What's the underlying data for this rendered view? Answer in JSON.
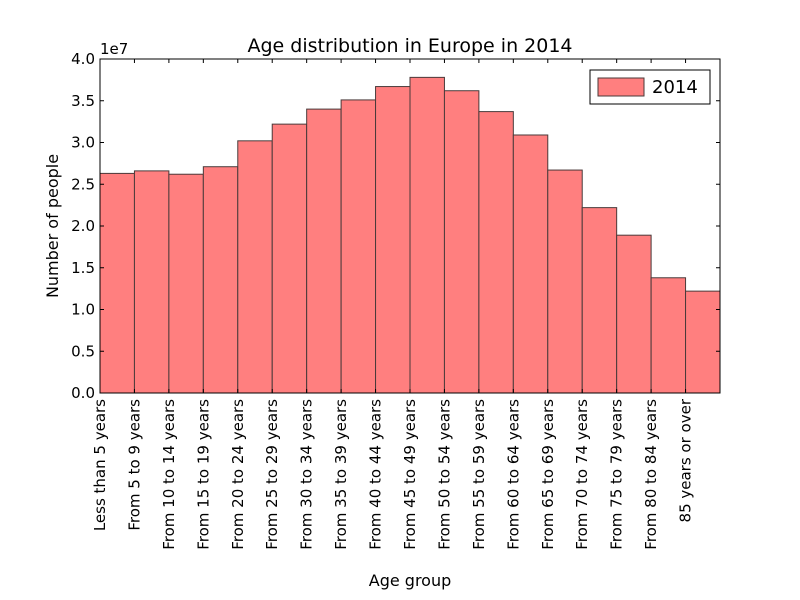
{
  "chart_data": {
    "type": "bar",
    "title": "Age distribution in Europe in 2014",
    "xlabel": "Age group",
    "ylabel": "Number of people",
    "y_multiplier_label": "1e7",
    "ylim": [
      0,
      40000000
    ],
    "y_ticks": [
      0,
      5000000,
      10000000,
      15000000,
      20000000,
      25000000,
      30000000,
      35000000,
      40000000
    ],
    "y_tick_labels": [
      "0.0",
      "0.5",
      "1.0",
      "1.5",
      "2.0",
      "2.5",
      "3.0",
      "3.5",
      "4.0"
    ],
    "grid": false,
    "legend_position": "top-right",
    "categories": [
      "Less than 5 years",
      "From 5 to 9 years",
      "From 10 to 14 years",
      "From 15 to 19 years",
      "From 20 to 24 years",
      "From 25 to 29 years",
      "From 30 to 34 years",
      "From 35 to 39 years",
      "From 40 to 44 years",
      "From 45 to 49 years",
      "From 50 to 54 years",
      "From 55 to 59 years",
      "From 60 to 64 years",
      "From 65 to 69 years",
      "From 70 to 74 years",
      "From 75 to 79 years",
      "From 80 to 84 years",
      "85 years or over"
    ],
    "series": [
      {
        "name": "2014",
        "color": "#ff7f7f",
        "values": [
          26300000,
          26600000,
          26200000,
          27100000,
          30200000,
          32200000,
          34000000,
          35100000,
          36700000,
          37800000,
          36200000,
          33700000,
          30900000,
          26700000,
          22200000,
          18900000,
          13800000,
          12200000
        ]
      }
    ]
  }
}
